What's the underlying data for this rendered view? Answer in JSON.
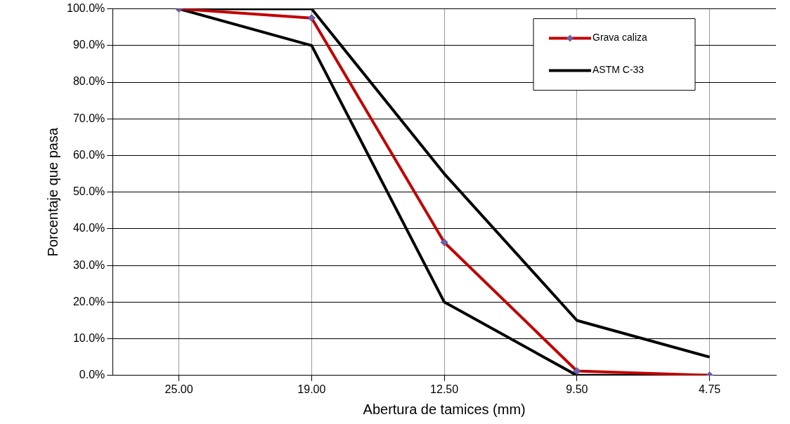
{
  "chart_data": {
    "type": "line",
    "xlabel": "Abertura de tamices (mm)",
    "ylabel": "Porcentaje que pasa",
    "categories": [
      "25.00",
      "19.00",
      "12.50",
      "9.50",
      "4.75"
    ],
    "series": [
      {
        "name": "Grava caliza",
        "color": "#c00000",
        "values": [
          100,
          97.5,
          36.3,
          1.2,
          0
        ],
        "marker": "diamond"
      },
      {
        "name": "ASTM C-33",
        "color": "#000000",
        "values": [
          100,
          100,
          55,
          15,
          5
        ],
        "marker": "none"
      },
      {
        "color": "#000000",
        "values": [
          100,
          90,
          20,
          0,
          0
        ],
        "marker": "none"
      }
    ],
    "ylim": [
      0,
      100
    ],
    "yticks": [
      {
        "value": 0,
        "label": "0.0%"
      },
      {
        "value": 10,
        "label": "10.0%"
      },
      {
        "value": 20,
        "label": "20.0%"
      },
      {
        "value": 30,
        "label": "30.0%"
      },
      {
        "value": 40,
        "label": "40.0%"
      },
      {
        "value": 50,
        "label": "50.0%"
      },
      {
        "value": 60,
        "label": "60.0%"
      },
      {
        "value": 70,
        "label": "70.0%"
      },
      {
        "value": 80,
        "label": "80.0%"
      },
      {
        "value": 90,
        "label": "90.0%"
      },
      {
        "value": 100,
        "label": "100.0%"
      }
    ],
    "grid": true,
    "legend": "top right"
  }
}
